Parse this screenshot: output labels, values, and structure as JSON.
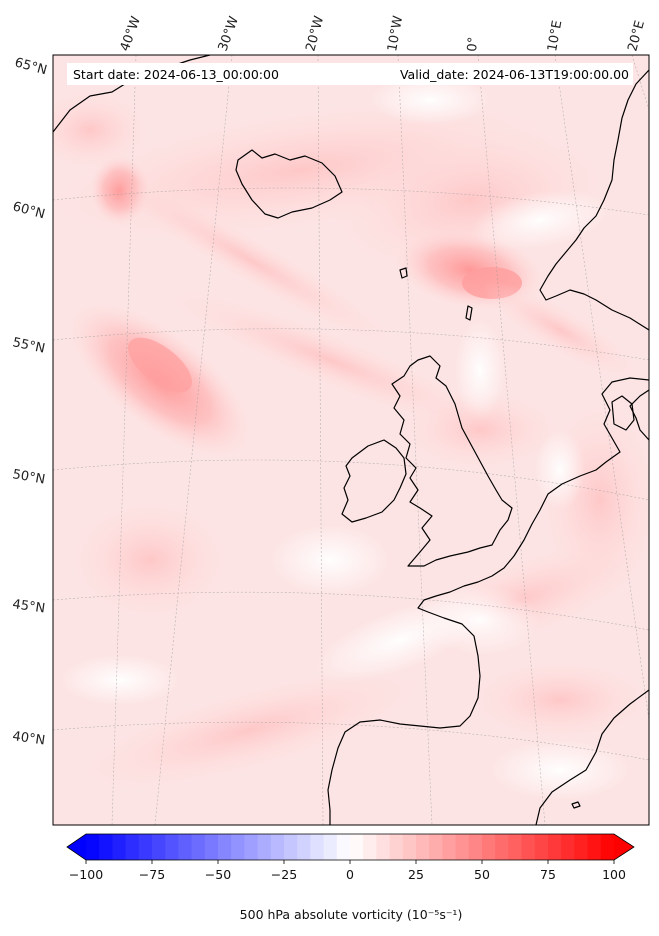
{
  "header": {
    "start_date": "Start date: 2024-06-13_00:00:00",
    "valid_date": "Valid_date: 2024-06-13T19:00:00.00"
  },
  "map": {
    "projection": "lambert-conformal",
    "extent": {
      "lon_min": -45,
      "lon_max": 20,
      "lat_min": 35,
      "lat_max": 66
    },
    "longitude_labels": [
      "40°W",
      "30°W",
      "20°W",
      "10°W",
      "0°",
      "10°E",
      "20°E"
    ],
    "latitude_labels": [
      "65°N",
      "60°N",
      "55°N",
      "50°N",
      "45°N",
      "40°N"
    ],
    "gridlines": true,
    "coastline_color": "#000000",
    "field": "500 hPa absolute vorticity",
    "field_color_low": "#0000ff",
    "field_color_mid": "#ffffff",
    "field_color_high": "#ff0000"
  },
  "colorbar": {
    "ticks": [
      "−100",
      "−75",
      "−50",
      "−25",
      "0",
      "25",
      "50",
      "75",
      "100"
    ],
    "tick_values": [
      -100,
      -75,
      -50,
      -25,
      0,
      25,
      50,
      75,
      100
    ],
    "range": [
      -100,
      100
    ],
    "extend": "both",
    "label": "500 hPa absolute vorticity (10⁻⁵s⁻¹)"
  }
}
